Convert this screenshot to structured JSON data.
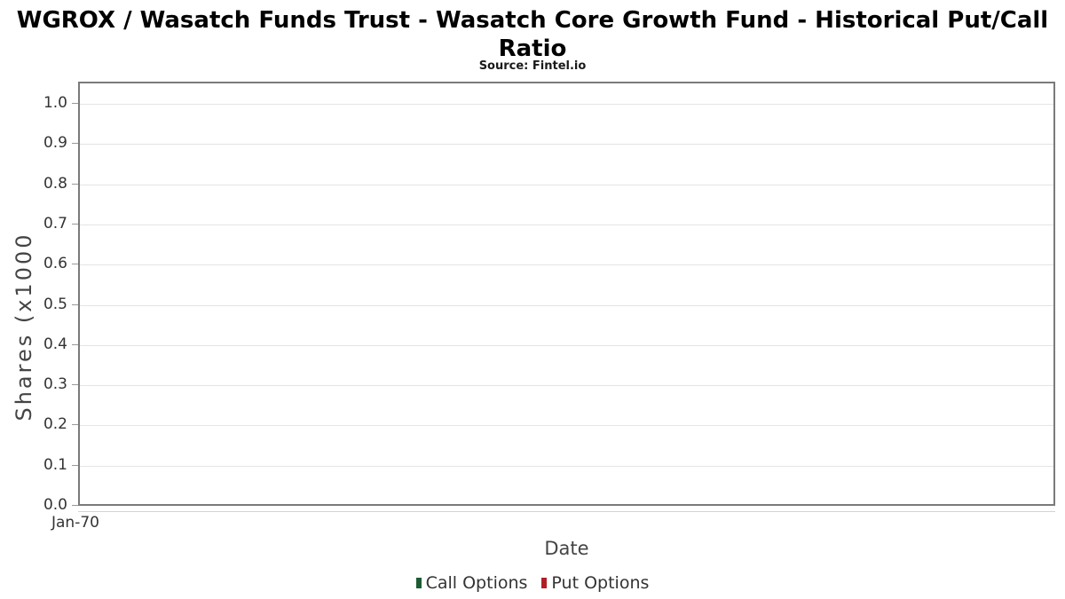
{
  "chart_data": {
    "type": "line",
    "title": "WGROX / Wasatch Funds Trust - Wasatch Core Growth Fund - Historical Put/Call Ratio",
    "title_lines": [
      "WGROX / Wasatch Funds Trust - Wasatch Core Growth Fund - Historical Put/Call",
      "Ratio"
    ],
    "source": "Source: Fintel.io",
    "xlabel": "Date",
    "ylabel": "Shares (x1000",
    "x_tick_labels": [
      "Jan-70"
    ],
    "y_tick_labels": [
      "0.0",
      "0.1",
      "0.2",
      "0.3",
      "0.4",
      "0.5",
      "0.6",
      "0.7",
      "0.8",
      "0.9",
      "1.0"
    ],
    "ylim": [
      0.0,
      1.05
    ],
    "grid": "horizontal-only",
    "legend_position": "bottom-center",
    "series": [
      {
        "name": "Call Options",
        "color": "#1d5c32",
        "values": []
      },
      {
        "name": "Put Options",
        "color": "#b01f24",
        "values": []
      }
    ],
    "colors": {
      "plot_border": "#7a7a7a",
      "gridline": "#e4e4e4",
      "tick_text": "#333333",
      "axis_title_text": "#444444",
      "title_text": "#000000"
    }
  }
}
